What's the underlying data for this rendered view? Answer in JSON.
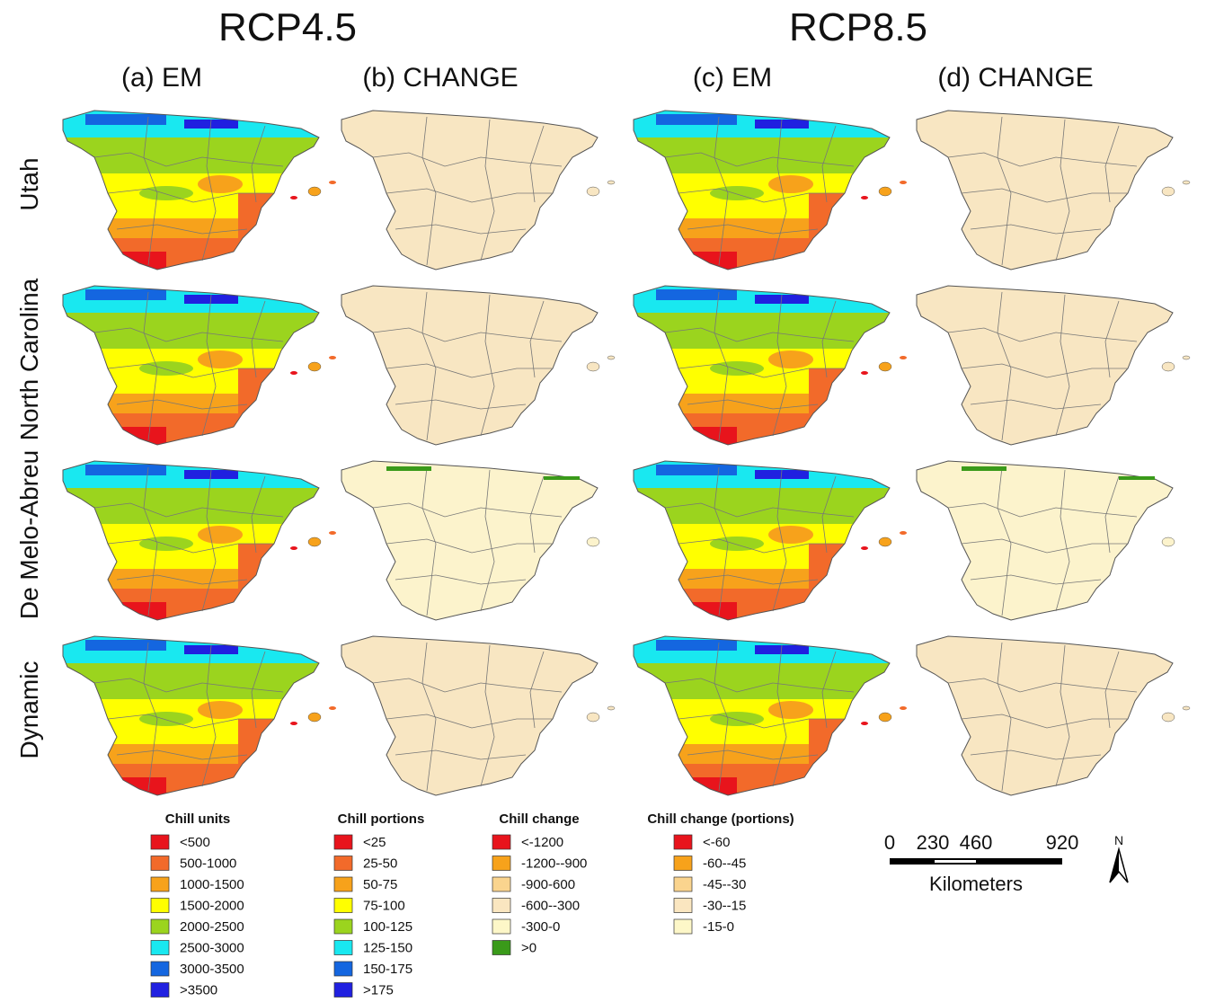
{
  "header": {
    "scenarios": [
      "RCP4.5",
      "RCP8.5"
    ],
    "panels": [
      "(a) EM",
      "(b) CHANGE",
      "(c) EM",
      "(d) CHANGE"
    ],
    "rows": [
      "Utah",
      "North Carolina",
      "De Melo-Abreu",
      "Dynamic"
    ]
  },
  "legends": [
    {
      "title": "Chill units",
      "items": [
        {
          "label": "<500",
          "color": "#e8141c"
        },
        {
          "label": "500-1000",
          "color": "#f26a2a"
        },
        {
          "label": "1000-1500",
          "color": "#f7a21b"
        },
        {
          "label": "1500-2000",
          "color": "#ffff00"
        },
        {
          "label": "2000-2500",
          "color": "#9bd41e"
        },
        {
          "label": "2500-3000",
          "color": "#19e8f0"
        },
        {
          "label": "3000-3500",
          "color": "#1466e0"
        },
        {
          "label": ">3500",
          "color": "#2020e0"
        }
      ]
    },
    {
      "title": "Chill portions",
      "items": [
        {
          "label": "<25",
          "color": "#e8141c"
        },
        {
          "label": "25-50",
          "color": "#f26a2a"
        },
        {
          "label": "50-75",
          "color": "#f7a21b"
        },
        {
          "label": "75-100",
          "color": "#ffff00"
        },
        {
          "label": "100-125",
          "color": "#9bd41e"
        },
        {
          "label": "125-150",
          "color": "#19e8f0"
        },
        {
          "label": "150-175",
          "color": "#1466e0"
        },
        {
          "label": ">175",
          "color": "#2020e0"
        }
      ]
    },
    {
      "title": "Chill change",
      "items": [
        {
          "label": "<-1200",
          "color": "#e8141c"
        },
        {
          "label": "-1200--900",
          "color": "#f7a21b"
        },
        {
          "label": "-900-600",
          "color": "#fad48e"
        },
        {
          "label": "-600--300",
          "color": "#fae6c0"
        },
        {
          "label": "-300-0",
          "color": "#fdf7c8"
        },
        {
          "label": ">0",
          "color": "#3a9a1a"
        }
      ]
    },
    {
      "title": "Chill change (portions)",
      "items": [
        {
          "label": "<-60",
          "color": "#e8141c"
        },
        {
          "label": "-60--45",
          "color": "#f7a21b"
        },
        {
          "label": "-45--30",
          "color": "#fad48e"
        },
        {
          "label": "-30--15",
          "color": "#fae6c0"
        },
        {
          "label": "-15-0",
          "color": "#fdf7c8"
        }
      ]
    }
  ],
  "scale_bar": {
    "labels": [
      "0",
      "230",
      "460",
      "920"
    ],
    "unit": "Kilometers",
    "north": "N"
  }
}
